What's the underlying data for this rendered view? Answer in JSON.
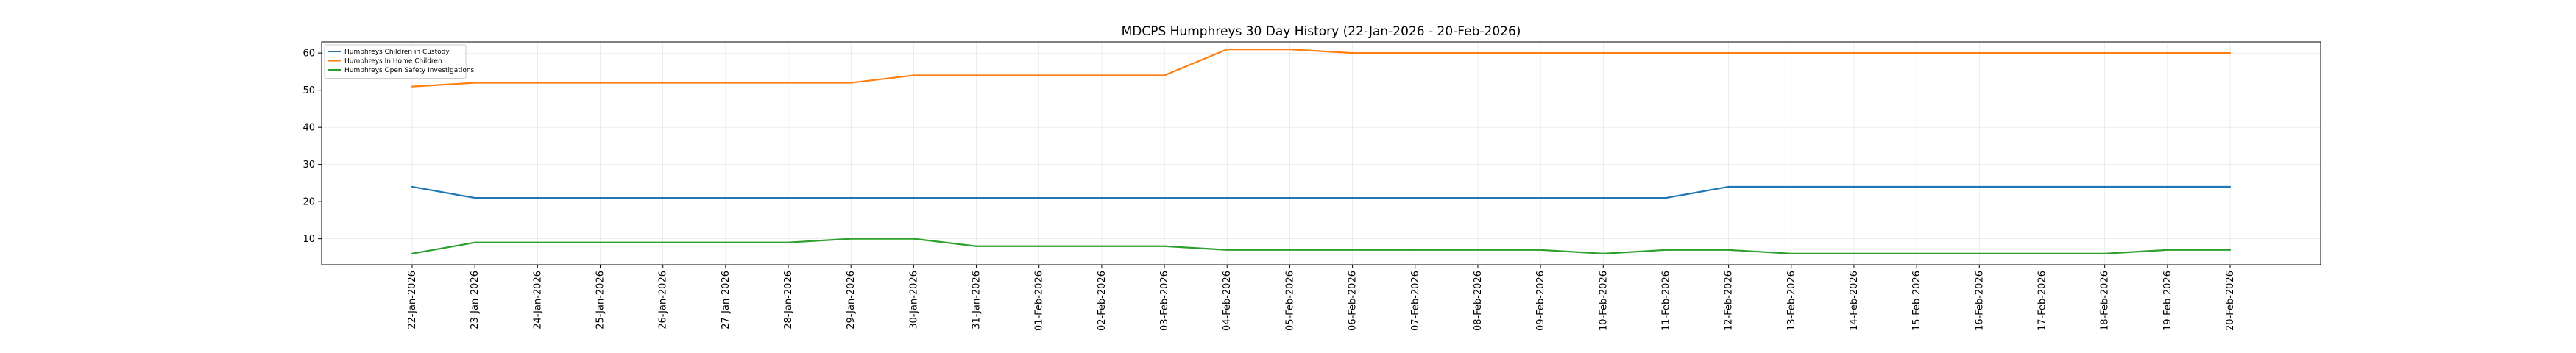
{
  "chart_data": {
    "type": "line",
    "title": "MDCPS Humphreys 30 Day History (22-Jan-2026 - 20-Feb-2026)",
    "xlabel": "",
    "ylabel": "",
    "ylim": [
      3,
      63
    ],
    "yticks": [
      10,
      20,
      30,
      40,
      50,
      60
    ],
    "grid": true,
    "legend_position": "top-left",
    "categories": [
      "22-Jan-2026",
      "23-Jan-2026",
      "24-Jan-2026",
      "25-Jan-2026",
      "26-Jan-2026",
      "27-Jan-2026",
      "28-Jan-2026",
      "29-Jan-2026",
      "30-Jan-2026",
      "31-Jan-2026",
      "01-Feb-2026",
      "02-Feb-2026",
      "03-Feb-2026",
      "04-Feb-2026",
      "05-Feb-2026",
      "06-Feb-2026",
      "07-Feb-2026",
      "08-Feb-2026",
      "09-Feb-2026",
      "10-Feb-2026",
      "11-Feb-2026",
      "12-Feb-2026",
      "13-Feb-2026",
      "14-Feb-2026",
      "15-Feb-2026",
      "16-Feb-2026",
      "17-Feb-2026",
      "18-Feb-2026",
      "19-Feb-2026",
      "20-Feb-2026"
    ],
    "series": [
      {
        "name": "Humphreys Children in Custody",
        "color": "#1f77b4",
        "values": [
          24,
          21,
          21,
          21,
          21,
          21,
          21,
          21,
          21,
          21,
          21,
          21,
          21,
          21,
          21,
          21,
          21,
          21,
          21,
          21,
          21,
          24,
          24,
          24,
          24,
          24,
          24,
          24,
          24,
          24
        ]
      },
      {
        "name": "Humphreys In Home Children",
        "color": "#ff7f0e",
        "values": [
          51,
          52,
          52,
          52,
          52,
          52,
          52,
          52,
          54,
          54,
          54,
          54,
          54,
          61,
          61,
          60,
          60,
          60,
          60,
          60,
          60,
          60,
          60,
          60,
          60,
          60,
          60,
          60,
          60,
          60
        ]
      },
      {
        "name": "Humphreys Open Safety Investigations",
        "color": "#2ca02c",
        "values": [
          6,
          9,
          9,
          9,
          9,
          9,
          9,
          10,
          10,
          8,
          8,
          8,
          8,
          7,
          7,
          7,
          7,
          7,
          7,
          6,
          7,
          7,
          6,
          6,
          6,
          6,
          6,
          6,
          7,
          7
        ]
      }
    ]
  }
}
